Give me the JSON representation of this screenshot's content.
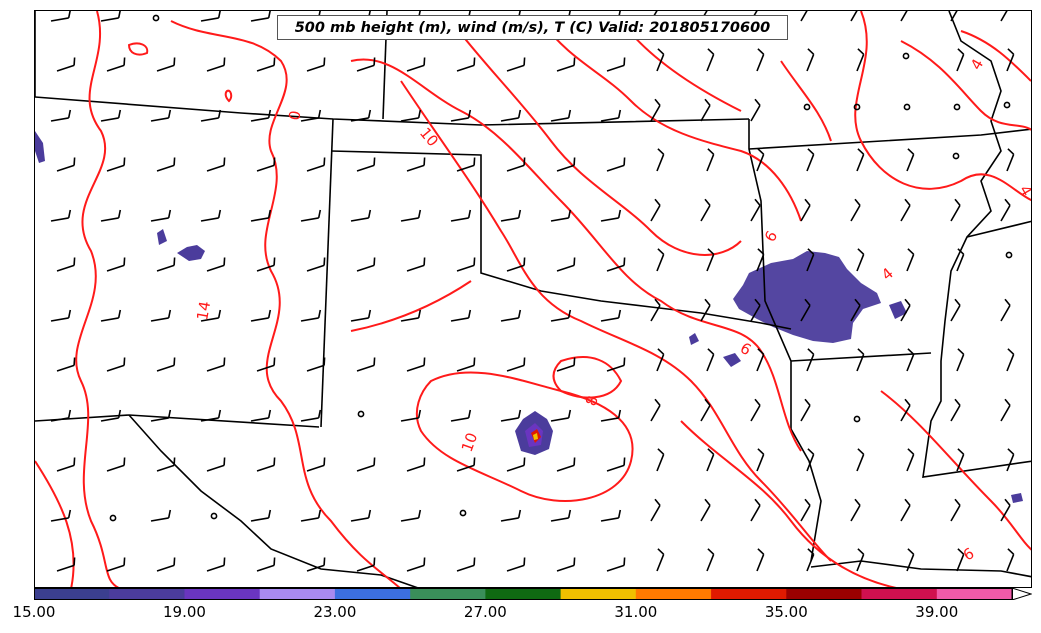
{
  "title": "500 mb height (m), wind (m/s), T (C) Valid: 201805170600",
  "contour_labels": [
    "10",
    "14",
    "10",
    "8",
    "6",
    "6",
    "4",
    "4",
    "4",
    "6",
    "0"
  ],
  "colorbar": {
    "colors": [
      "#3b3f8f",
      "#4b3c9c",
      "#6a35c0",
      "#a88af0",
      "#3c6fe0",
      "#3a8f5a",
      "#0f6a12",
      "#f0c000",
      "#ff7a00",
      "#e01a00",
      "#9a0000",
      "#d0104f",
      "#f05aa8",
      "#ffffff"
    ],
    "tick_labels": [
      "15.00",
      "19.00",
      "23.00",
      "27.00",
      "31.00",
      "35.00",
      "39.00"
    ]
  },
  "colors": {
    "contour": "#ff1a1a",
    "border": "#000000",
    "shading": "#4b3c9c"
  }
}
